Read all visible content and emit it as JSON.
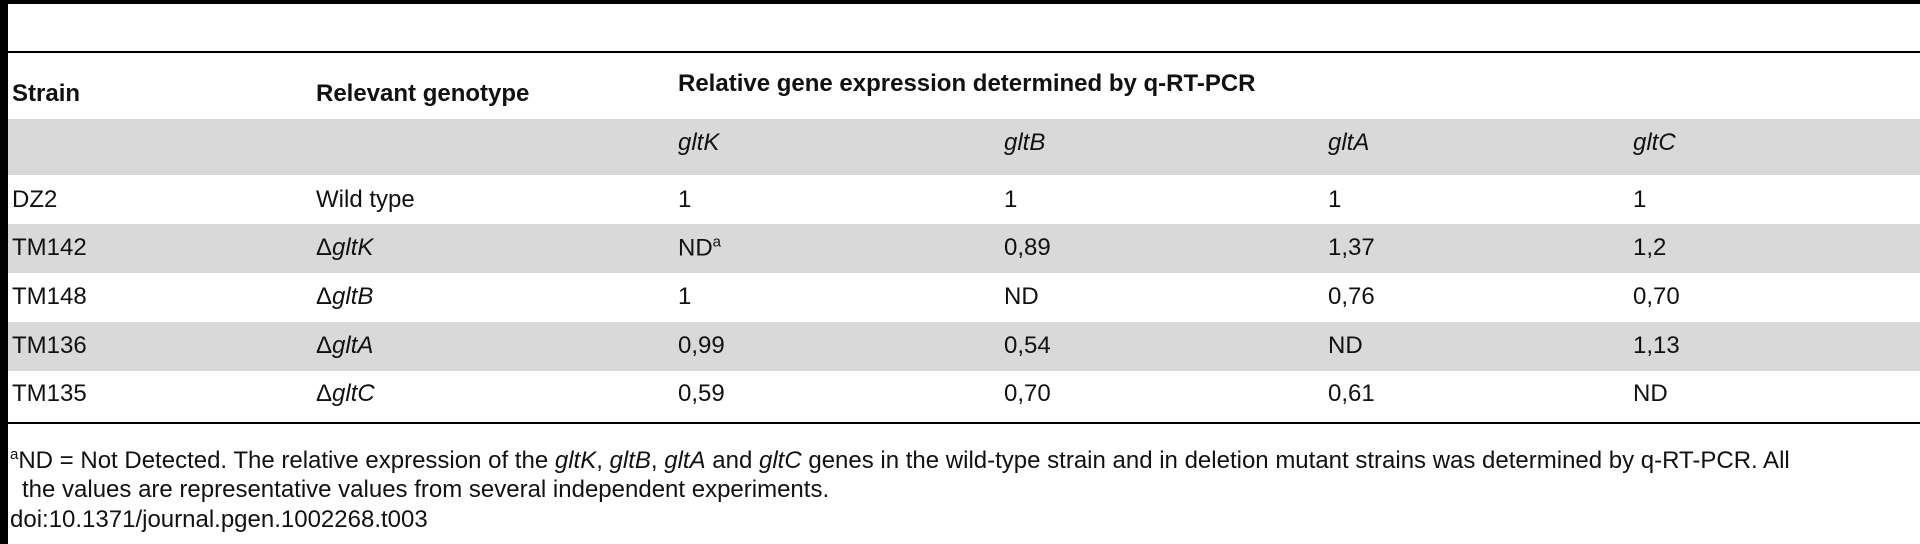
{
  "table": {
    "headers": [
      "Strain",
      "Relevant genotype"
    ],
    "group_header": "Relative gene expression determined by q-RT-PCR",
    "subheaders": [
      "gltK",
      "gltB",
      "gltA",
      "gltC"
    ],
    "rows": [
      {
        "strain": "DZ2",
        "genotype": {
          "text": "Wild type"
        },
        "values": [
          {
            "text": "1"
          },
          {
            "text": "1"
          },
          {
            "text": "1"
          },
          {
            "text": "1"
          }
        ]
      },
      {
        "strain": "TM142",
        "genotype": {
          "symbol": "Δ",
          "gene": "gltK"
        },
        "values": [
          {
            "text": "ND",
            "sup": "a"
          },
          {
            "text": "0,89"
          },
          {
            "text": "1,37"
          },
          {
            "text": "1,2"
          }
        ]
      },
      {
        "strain": "TM148",
        "genotype": {
          "symbol": "Δ",
          "gene": "gltB"
        },
        "values": [
          {
            "text": "1"
          },
          {
            "text": "ND"
          },
          {
            "text": "0,76"
          },
          {
            "text": "0,70"
          }
        ]
      },
      {
        "strain": "TM136",
        "genotype": {
          "symbol": "Δ",
          "gene": "gltA"
        },
        "values": [
          {
            "text": "0,99"
          },
          {
            "text": "0,54"
          },
          {
            "text": "ND"
          },
          {
            "text": "1,13"
          }
        ]
      },
      {
        "strain": "TM135",
        "genotype": {
          "symbol": "Δ",
          "gene": "gltC"
        },
        "values": [
          {
            "text": "0,59"
          },
          {
            "text": "0,70"
          },
          {
            "text": "0,61"
          },
          {
            "text": "ND"
          }
        ]
      }
    ]
  },
  "footnote": {
    "marker": "a",
    "parts": [
      "ND = Not Detected. The relative expression of the ",
      "gltK",
      ", ",
      "gltB",
      ", ",
      "gltA",
      " and ",
      "gltC",
      " genes in the wild-type strain and in deletion mutant strains was determined by q-RT-PCR. All"
    ],
    "italic": [
      1,
      3,
      5,
      7
    ],
    "line2": "the values are representative values from several independent experiments."
  },
  "doi": "doi:10.1371/journal.pgen.1002268.t003"
}
